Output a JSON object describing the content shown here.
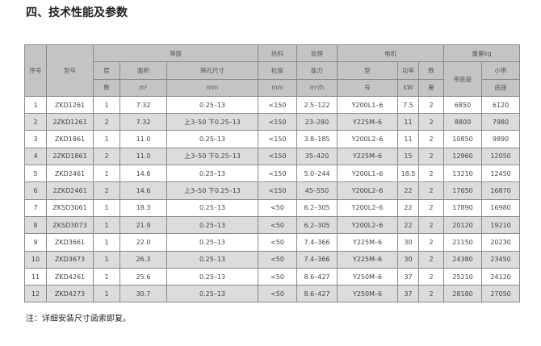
{
  "title": "四、技术性能及参数",
  "header": {
    "no": "序号",
    "model": "型号",
    "screen": "筛面",
    "layers_1": "层",
    "layers_2": "数",
    "area": "面积",
    "area_unit": "m²",
    "aperture": "筛孔尺寸",
    "aperture_unit": "mm",
    "feed_1": "给料",
    "feed_2": "粒度",
    "feed_unit": "mm",
    "cap_1": "处理",
    "cap_2": "能力",
    "cap_unit": "m³/h",
    "motor": "电机",
    "motor_model_1": "型",
    "motor_model_2": "号",
    "power": "功率",
    "power_unit": "kW",
    "qty_1": "数",
    "qty_2": "量",
    "weight": "重量kg",
    "w_base": "带底座",
    "w_small_1": "小带",
    "w_small_2": "底座"
  },
  "rows": [
    [
      "1",
      "ZKD1261",
      "1",
      "7.32",
      "0.25–13",
      "<150",
      "2.5–122",
      "Y200L1–6",
      "7.5",
      "2",
      "6850",
      "6120"
    ],
    [
      "2",
      "2ZKD1261",
      "2",
      "7.32",
      "上3–50  下0.25–13",
      "<150",
      "23–280",
      "Y225M–6",
      "11",
      "2",
      "8800",
      "7980"
    ],
    [
      "3",
      "ZKD1861",
      "1",
      "11.0",
      "0.25–13",
      "<150",
      "3.8–185",
      "Y200L2–6",
      "11",
      "2",
      "10850",
      "9890"
    ],
    [
      "4",
      "2ZKD1861",
      "2",
      "11.0",
      "上3–50  下0.25–13",
      "<150",
      "35–420",
      "Y225M–6",
      "15",
      "2",
      "12960",
      "12050"
    ],
    [
      "5",
      "ZKD2461",
      "1",
      "14.6",
      "0.25–13",
      "<150",
      "5.0–244",
      "Y200L1–6",
      "18.5",
      "2",
      "13210",
      "12450"
    ],
    [
      "6",
      "2ZKD2461",
      "2",
      "14.6",
      "上3–50  下0.25–13",
      "<150",
      "45–550",
      "Y200L2–6",
      "22",
      "2",
      "17650",
      "16870"
    ],
    [
      "7",
      "ZKSD3061",
      "1",
      "18.3",
      "0.25–13",
      "<50",
      "6.2–305",
      "Y200L2–6",
      "22",
      "2",
      "17890",
      "16980"
    ],
    [
      "8",
      "ZKSD3073",
      "1",
      "21.9",
      "0.25–13",
      "<50",
      "6.2–305",
      "Y200L2–6",
      "22",
      "2",
      "20120",
      "19210"
    ],
    [
      "9",
      "ZKD3661",
      "1",
      "22.0",
      "0.25–13",
      "<50",
      "7.4–366",
      "Y225M–6",
      "30",
      "2",
      "21150",
      "20230"
    ],
    [
      "10",
      "ZKD3673",
      "1",
      "26.3",
      "0.25–13",
      "<50",
      "7.4–366",
      "Y225M–6",
      "30",
      "2",
      "24380",
      "23450"
    ],
    [
      "11",
      "ZKD4261",
      "1",
      "25.6",
      "0.25–13",
      "<50",
      "8.6–427",
      "Y250M–6",
      "37",
      "2",
      "25210",
      "24120"
    ],
    [
      "12",
      "ZKD4273",
      "1",
      "30.7",
      "0.25–13",
      "<50",
      "8.6–427",
      "Y250M–6",
      "37",
      "2",
      "28180",
      "27050"
    ]
  ],
  "note": "注：详细安装尺寸函索即复。"
}
